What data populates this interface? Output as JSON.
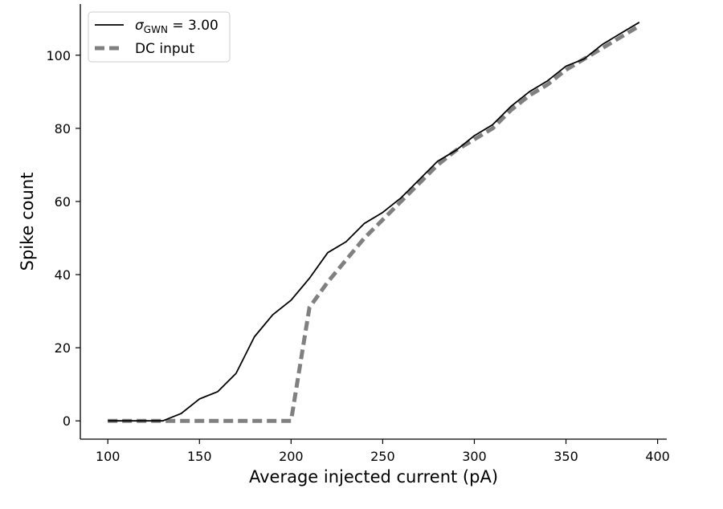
{
  "chart_data": {
    "type": "line",
    "title": "",
    "xlabel": "Average injected current (pA)",
    "ylabel": "Spike count",
    "xlim": [
      85,
      405
    ],
    "ylim": [
      -5,
      114
    ],
    "xticks": [
      100,
      150,
      200,
      250,
      300,
      350,
      400
    ],
    "yticks": [
      0,
      20,
      40,
      60,
      80,
      100
    ],
    "grid": false,
    "legend_position": "top-left",
    "series": [
      {
        "name": "σGWN = 3.00",
        "legend_label": {
          "sigma": "σ",
          "subscript": "GWN",
          "rest": " = 3.00"
        },
        "color": "#000000",
        "style": "solid",
        "x": [
          100,
          110,
          120,
          130,
          140,
          150,
          160,
          170,
          180,
          190,
          200,
          210,
          220,
          230,
          240,
          250,
          260,
          270,
          280,
          290,
          300,
          310,
          320,
          330,
          340,
          350,
          360,
          370,
          380,
          390
        ],
        "y": [
          0,
          0,
          0,
          0,
          2,
          6,
          8,
          13,
          23,
          29,
          33,
          39,
          46,
          49,
          54,
          57,
          61,
          66,
          71,
          74,
          78,
          81,
          86,
          90,
          93,
          97,
          99,
          103,
          106,
          109
        ]
      },
      {
        "name": "DC input",
        "legend_label": {
          "text": "DC input"
        },
        "color": "#808080",
        "style": "dashed",
        "x": [
          100,
          110,
          120,
          130,
          140,
          150,
          160,
          170,
          180,
          190,
          200,
          210,
          220,
          230,
          240,
          250,
          260,
          270,
          280,
          290,
          300,
          310,
          320,
          330,
          340,
          350,
          360,
          370,
          380,
          390
        ],
        "y": [
          0,
          0,
          0,
          0,
          0,
          0,
          0,
          0,
          0,
          0,
          0,
          31,
          38,
          44,
          50,
          55,
          60,
          65,
          70,
          74,
          77,
          80,
          85,
          89,
          92,
          96,
          99,
          102,
          105,
          108
        ]
      }
    ]
  }
}
